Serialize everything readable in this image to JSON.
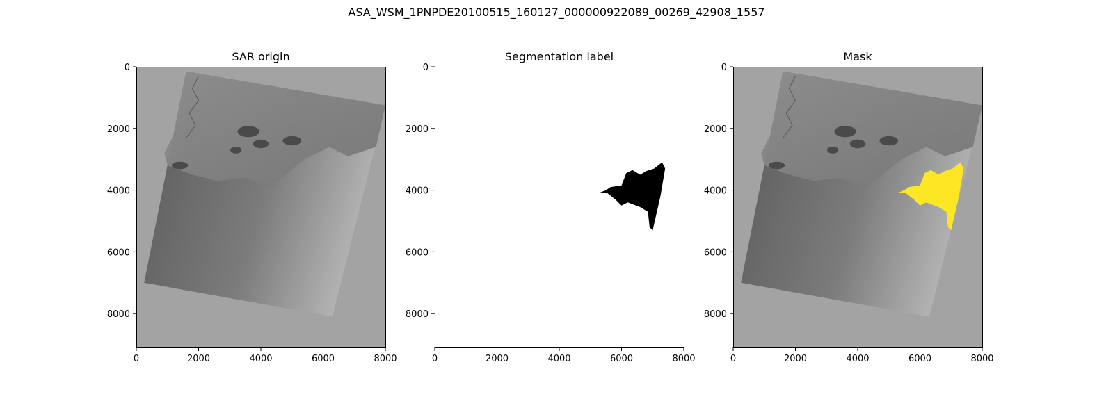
{
  "figure": {
    "suptitle": "ASA_WSM_1PNPDE20100515_160127_000000922089_00269_42908_1557"
  },
  "image_extent": {
    "width": 8000,
    "height": 9100
  },
  "scene_footprint": [
    [
      1600,
      150
    ],
    [
      8000,
      1250
    ],
    [
      6300,
      8100
    ],
    [
      250,
      7000
    ]
  ],
  "oil_spill_outline": [
    [
      7300,
      3100
    ],
    [
      7400,
      3300
    ],
    [
      7250,
      4200
    ],
    [
      7000,
      5300
    ],
    [
      6900,
      5200
    ],
    [
      6850,
      4700
    ],
    [
      6600,
      4550
    ],
    [
      6200,
      4400
    ],
    [
      6000,
      4500
    ],
    [
      5800,
      4300
    ],
    [
      5550,
      4100
    ],
    [
      5300,
      4080
    ],
    [
      5500,
      4000
    ],
    [
      5650,
      3900
    ],
    [
      6000,
      3850
    ],
    [
      6150,
      3450
    ],
    [
      6350,
      3350
    ],
    [
      6600,
      3500
    ],
    [
      6800,
      3380
    ],
    [
      7050,
      3300
    ]
  ],
  "panels": [
    {
      "id": "sar-origin",
      "title": "SAR origin",
      "kind": "sar",
      "xticks": [
        0,
        2000,
        4000,
        6000,
        8000
      ],
      "yticks": [
        0,
        2000,
        4000,
        6000,
        8000
      ],
      "colors": {
        "background": "#a3a3a3",
        "water": "#6b6b6b",
        "land": "#8a8a8a"
      }
    },
    {
      "id": "segmentation-label",
      "title": "Segmentation label",
      "kind": "label",
      "xticks": [
        0,
        2000,
        4000,
        6000,
        8000
      ],
      "yticks": [
        0,
        2000,
        4000,
        6000,
        8000
      ],
      "colors": {
        "background": "#ffffff",
        "spill": "#000000"
      }
    },
    {
      "id": "mask",
      "title": "Mask",
      "kind": "mask",
      "xticks": [
        0,
        2000,
        4000,
        6000,
        8000
      ],
      "yticks": [
        0,
        2000,
        4000,
        6000,
        8000
      ],
      "colors": {
        "background": "#a3a3a3",
        "water": "#6b6b6b",
        "land": "#8a8a8a",
        "spill": "#fde725"
      }
    }
  ]
}
